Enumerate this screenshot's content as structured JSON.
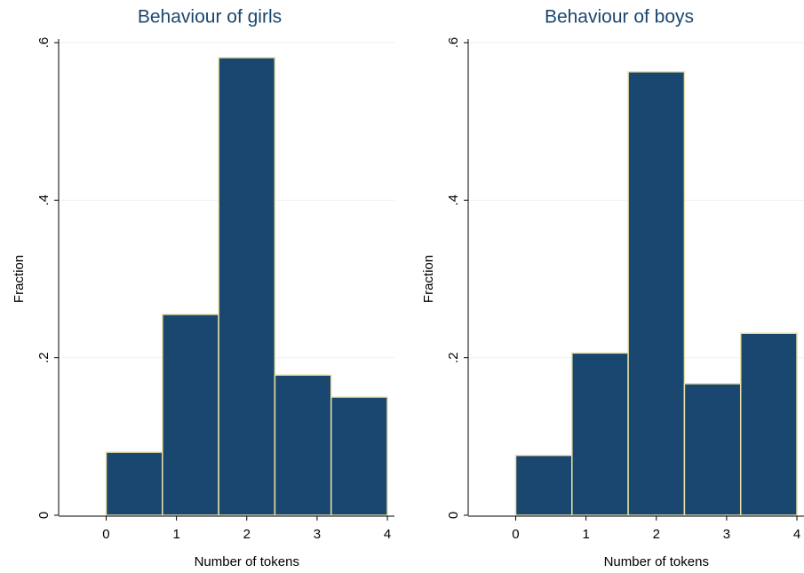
{
  "chart_data": [
    {
      "type": "histogram",
      "title": "Behaviour of girls",
      "xlabel": "Number of tokens",
      "ylabel": "Fraction",
      "bins": [
        0,
        0.8,
        1.6,
        2.4,
        3.2,
        4.0
      ],
      "values": [
        0.08,
        0.255,
        0.581,
        0.178,
        0.15
      ],
      "color": "#1a476f",
      "xlim": [
        -0.6,
        4.05
      ],
      "ylim": [
        0,
        0.6
      ],
      "xticks": [
        0,
        1,
        2,
        3,
        4
      ],
      "yticks": [
        0,
        {
          "value": 0.2,
          "label": ".2"
        },
        {
          "value": 0.4,
          "label": ".4"
        },
        {
          "value": 0.6,
          "label": ".6"
        }
      ],
      "grid": true
    },
    {
      "type": "histogram",
      "title": "Behaviour of boys",
      "xlabel": "Number of tokens",
      "ylabel": "Fraction",
      "bins": [
        0,
        0.8,
        1.6,
        2.4,
        3.2,
        4.0
      ],
      "values": [
        0.076,
        0.206,
        0.563,
        0.167,
        0.231
      ],
      "color": "#1a476f",
      "xlim": [
        -0.6,
        4.05
      ],
      "ylim": [
        0,
        0.6
      ],
      "xticks": [
        0,
        1,
        2,
        3,
        4
      ],
      "yticks": [
        0,
        {
          "value": 0.2,
          "label": ".2"
        },
        {
          "value": 0.4,
          "label": ".4"
        },
        {
          "value": 0.6,
          "label": ".6"
        }
      ],
      "grid": true
    }
  ]
}
